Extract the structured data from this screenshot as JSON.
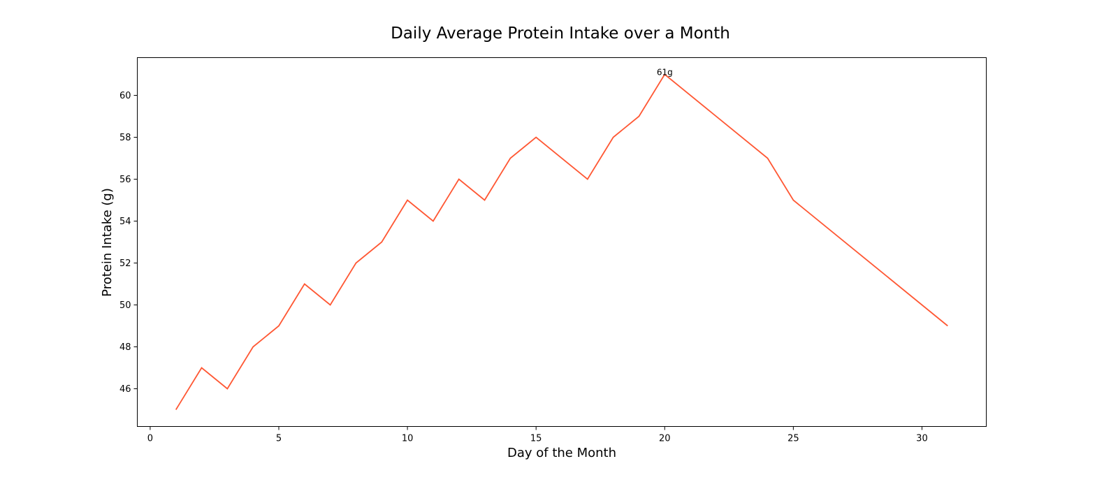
{
  "chart_data": {
    "type": "line",
    "title": "Daily Average Protein Intake over a Month",
    "xlabel": "Day of the Month",
    "ylabel": "Protein Intake (g)",
    "xlim": [
      -0.5,
      32.5
    ],
    "ylim": [
      44.2,
      61.8
    ],
    "x_ticks": [
      0,
      5,
      10,
      15,
      20,
      25,
      30
    ],
    "y_ticks": [
      46,
      48,
      50,
      52,
      54,
      56,
      58,
      60
    ],
    "grid": false,
    "series": [
      {
        "color": "#ff5733",
        "points": [
          [
            1,
            45
          ],
          [
            2,
            47
          ],
          [
            3,
            46
          ],
          [
            4,
            48
          ],
          [
            5,
            49
          ],
          [
            6,
            51
          ],
          [
            7,
            50
          ],
          [
            8,
            52
          ],
          [
            9,
            53
          ],
          [
            10,
            55
          ],
          [
            11,
            54
          ],
          [
            12,
            56
          ],
          [
            13,
            55
          ],
          [
            14,
            57
          ],
          [
            15,
            58
          ],
          [
            17,
            56
          ],
          [
            18,
            58
          ],
          [
            19,
            59
          ],
          [
            20,
            61
          ],
          [
            24,
            57
          ],
          [
            25,
            55
          ],
          [
            31,
            49
          ]
        ]
      }
    ],
    "annotations": [
      {
        "x": 20,
        "y": 61,
        "text": "61g"
      }
    ]
  }
}
